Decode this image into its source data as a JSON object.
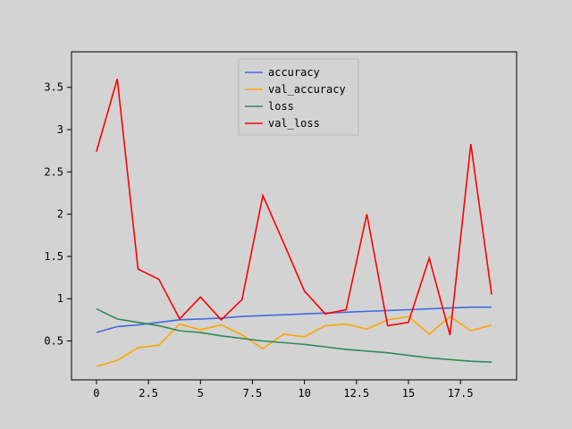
{
  "chart_data": {
    "type": "line",
    "x": [
      0,
      1,
      2,
      3,
      4,
      5,
      6,
      7,
      8,
      9,
      10,
      11,
      12,
      13,
      14,
      15,
      16,
      17,
      18,
      19
    ],
    "series": [
      {
        "name": "accuracy",
        "color": "#4169e1",
        "values": [
          0.6,
          0.67,
          0.69,
          0.72,
          0.75,
          0.76,
          0.77,
          0.79,
          0.8,
          0.81,
          0.82,
          0.83,
          0.84,
          0.85,
          0.86,
          0.87,
          0.88,
          0.89,
          0.9,
          0.9
        ]
      },
      {
        "name": "val_accuracy",
        "color": "#ffa500",
        "values": [
          0.2,
          0.27,
          0.42,
          0.45,
          0.7,
          0.63,
          0.69,
          0.57,
          0.41,
          0.58,
          0.55,
          0.68,
          0.7,
          0.64,
          0.75,
          0.79,
          0.58,
          0.79,
          0.62,
          0.69
        ]
      },
      {
        "name": "loss",
        "color": "#2e8b57",
        "values": [
          0.88,
          0.76,
          0.72,
          0.68,
          0.62,
          0.6,
          0.56,
          0.53,
          0.5,
          0.48,
          0.46,
          0.43,
          0.4,
          0.38,
          0.36,
          0.33,
          0.3,
          0.28,
          0.26,
          0.25
        ]
      },
      {
        "name": "val_loss",
        "color": "#ff0000",
        "values": [
          2.74,
          3.6,
          1.35,
          1.23,
          0.76,
          1.02,
          0.75,
          0.99,
          2.22,
          1.66,
          1.09,
          0.82,
          0.87,
          2.0,
          0.68,
          0.72,
          1.48,
          0.57,
          2.83,
          1.05
        ]
      }
    ],
    "xlim": [
      -1.2,
      20.2
    ],
    "ylim": [
      0.04,
      3.92
    ],
    "xticks": [
      0,
      2.5,
      5,
      7.5,
      10,
      12.5,
      15,
      17.5
    ],
    "xtick_labels": [
      "0",
      "2.5",
      "5",
      "7.5",
      "10",
      "12.5",
      "15",
      "17.5"
    ],
    "yticks": [
      0.5,
      1,
      1.5,
      2,
      2.5,
      3,
      3.5
    ],
    "ytick_labels": [
      "0.5",
      "1",
      "1.5",
      "2",
      "2.5",
      "3",
      "3.5"
    ],
    "legend_position": "top-center",
    "grid": false,
    "title": "",
    "xlabel": "",
    "ylabel": ""
  }
}
